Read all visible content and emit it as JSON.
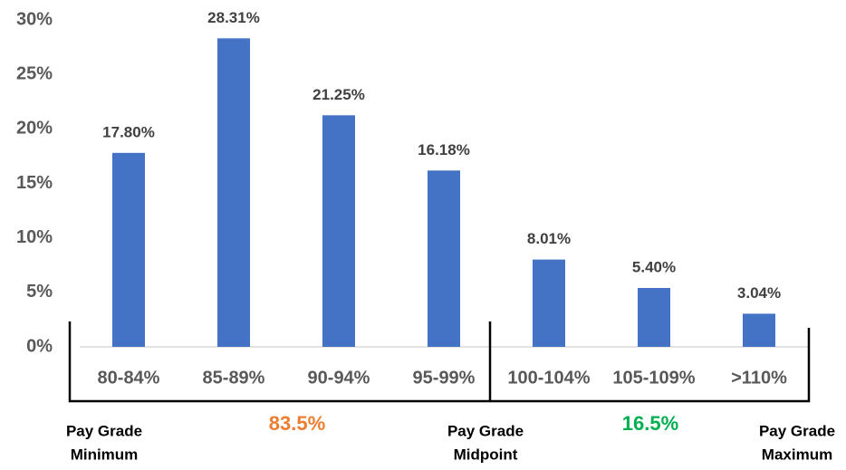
{
  "chart_data": {
    "type": "bar",
    "categories": [
      "80-84%",
      "85-89%",
      "90-94%",
      "95-99%",
      "100-104%",
      "105-109%",
      ">110%"
    ],
    "values": [
      17.8,
      28.31,
      21.25,
      16.18,
      8.01,
      5.4,
      3.04
    ],
    "value_labels": [
      "17.80%",
      "28.31%",
      "21.25%",
      "16.18%",
      "8.01%",
      "5.40%",
      "3.04%"
    ],
    "color": "#4472c4",
    "ylim": [
      0,
      30
    ],
    "yticks": [
      {
        "value": 0,
        "label": "0%"
      },
      {
        "value": 5,
        "label": "5%"
      },
      {
        "value": 10,
        "label": "10%"
      },
      {
        "value": 15,
        "label": "15%"
      },
      {
        "value": 20,
        "label": "20%"
      },
      {
        "value": 25,
        "label": "25%"
      },
      {
        "value": 30,
        "label": "30%"
      }
    ],
    "grid": false,
    "annotations": [
      {
        "lines": [
          "Pay Grade",
          "Minimum"
        ],
        "color": "#000000"
      },
      {
        "lines": [
          "83.5%"
        ],
        "color": "#ed7d31"
      },
      {
        "lines": [
          "Pay Grade",
          "Midpoint"
        ],
        "color": "#000000"
      },
      {
        "lines": [
          "16.5%"
        ],
        "color": "#00b050"
      },
      {
        "lines": [
          "Pay Grade",
          "Maximum"
        ],
        "color": "#000000"
      }
    ]
  }
}
